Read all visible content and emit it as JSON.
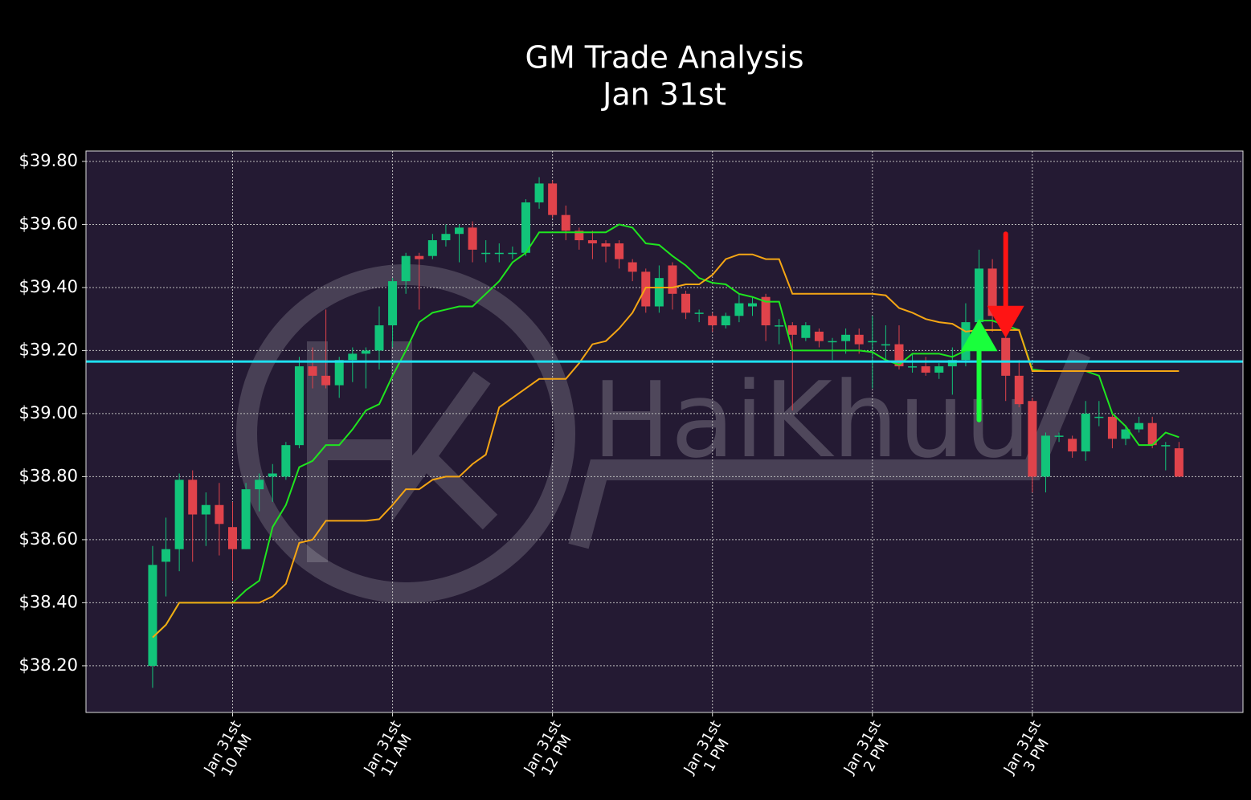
{
  "chart_data": {
    "type": "candlestick",
    "title": "GM Trade Analysis",
    "subtitle": "Jan 31st",
    "watermark": "HaiKhuu",
    "x": [
      570,
      575,
      580,
      585,
      590,
      595,
      600,
      605,
      610,
      615,
      620,
      625,
      630,
      635,
      640,
      645,
      650,
      655,
      660,
      665,
      670,
      675,
      680,
      685,
      690,
      695,
      700,
      705,
      710,
      715,
      720,
      725,
      730,
      735,
      740,
      745,
      750,
      755,
      760,
      765,
      770,
      775,
      780,
      785,
      790,
      795,
      800,
      805,
      810,
      815,
      820,
      825,
      830,
      835,
      840,
      845,
      850,
      855,
      860,
      865,
      870,
      875,
      880,
      885,
      890,
      895,
      900,
      905,
      910,
      915,
      920,
      925,
      930,
      935,
      940,
      945,
      950,
      955
    ],
    "open": [
      38.2,
      38.53,
      38.57,
      38.79,
      38.68,
      38.71,
      38.64,
      38.57,
      38.76,
      38.8,
      38.8,
      38.9,
      39.15,
      39.12,
      39.09,
      39.17,
      39.19,
      39.2,
      39.28,
      39.42,
      39.5,
      39.5,
      39.55,
      39.57,
      39.59,
      39.51,
      39.51,
      39.51,
      39.51,
      39.67,
      39.73,
      39.63,
      39.58,
      39.55,
      39.54,
      39.54,
      39.48,
      39.45,
      39.34,
      39.47,
      39.38,
      39.32,
      39.31,
      39.28,
      39.31,
      39.34,
      39.37,
      39.28,
      39.28,
      39.24,
      39.26,
      39.23,
      39.23,
      39.25,
      39.23,
      39.22,
      39.22,
      39.15,
      39.15,
      39.13,
      39.15,
      39.17,
      39.29,
      39.46,
      39.24,
      39.12,
      39.04,
      38.8,
      38.93,
      38.92,
      38.88,
      38.99,
      38.99,
      38.92,
      38.95,
      38.97,
      38.9,
      38.89
    ],
    "high": [
      38.58,
      38.67,
      38.81,
      38.82,
      38.75,
      38.78,
      38.72,
      38.78,
      38.81,
      38.84,
      38.91,
      39.18,
      39.21,
      39.33,
      39.18,
      39.21,
      39.21,
      39.34,
      39.43,
      39.51,
      39.51,
      39.57,
      39.6,
      39.6,
      39.61,
      39.55,
      39.54,
      39.53,
      39.68,
      39.75,
      39.74,
      39.66,
      39.59,
      39.58,
      39.55,
      39.55,
      39.49,
      39.46,
      39.47,
      39.48,
      39.39,
      39.33,
      39.32,
      39.32,
      39.38,
      39.37,
      39.38,
      39.3,
      39.29,
      39.29,
      39.27,
      39.24,
      39.27,
      39.27,
      39.31,
      39.28,
      39.28,
      39.19,
      39.18,
      39.16,
      39.21,
      39.35,
      39.52,
      39.49,
      39.27,
      39.17,
      39.05,
      38.94,
      38.94,
      38.93,
      39.04,
      39.04,
      39.0,
      38.96,
      38.99,
      38.99,
      38.91,
      38.91
    ],
    "low": [
      38.13,
      38.42,
      38.5,
      38.53,
      38.58,
      38.55,
      38.47,
      38.57,
      38.69,
      38.72,
      38.79,
      38.89,
      39.08,
      39.08,
      39.05,
      39.1,
      39.08,
      39.14,
      39.21,
      39.38,
      39.33,
      39.49,
      39.53,
      39.48,
      39.48,
      39.48,
      39.48,
      39.49,
      39.5,
      39.65,
      39.62,
      39.55,
      39.52,
      39.49,
      39.48,
      39.46,
      39.42,
      39.32,
      39.32,
      39.33,
      39.3,
      39.29,
      39.26,
      39.27,
      39.29,
      39.31,
      39.23,
      39.22,
      39.01,
      39.23,
      39.21,
      39.17,
      39.19,
      39.19,
      39.08,
      39.17,
      39.14,
      39.13,
      39.12,
      39.11,
      39.06,
      39.15,
      39.27,
      39.26,
      39.04,
      39.02,
      38.75,
      38.75,
      38.91,
      38.86,
      38.85,
      38.96,
      38.89,
      38.9,
      38.94,
      38.89,
      38.82,
      38.8
    ],
    "close": [
      38.52,
      38.57,
      38.79,
      38.68,
      38.71,
      38.65,
      38.57,
      38.76,
      38.79,
      38.81,
      38.9,
      39.15,
      39.12,
      39.09,
      39.17,
      39.19,
      39.2,
      39.28,
      39.42,
      39.5,
      39.49,
      39.55,
      39.57,
      39.59,
      39.52,
      39.51,
      39.51,
      39.51,
      39.67,
      39.73,
      39.63,
      39.58,
      39.55,
      39.54,
      39.53,
      39.49,
      39.45,
      39.34,
      39.43,
      39.38,
      39.32,
      39.32,
      39.28,
      39.31,
      39.35,
      39.35,
      39.28,
      39.28,
      39.25,
      39.28,
      39.23,
      39.23,
      39.25,
      39.22,
      39.23,
      39.22,
      39.15,
      39.15,
      39.13,
      39.15,
      39.17,
      39.29,
      39.46,
      39.31,
      39.12,
      39.03,
      38.8,
      38.93,
      38.93,
      38.88,
      39.0,
      38.99,
      38.92,
      38.95,
      38.97,
      38.9,
      38.9,
      38.8
    ],
    "up_color": "#12c47a",
    "down_color": "#e0434b",
    "lines": [
      {
        "color": "#1fe51f",
        "values": [
          38.29,
          38.33,
          38.4,
          38.4,
          38.4,
          38.4,
          38.4,
          38.44,
          38.47,
          38.64,
          38.71,
          38.83,
          38.85,
          38.9,
          38.9,
          38.95,
          39.01,
          39.03,
          39.12,
          39.2,
          39.29,
          39.32,
          39.33,
          39.34,
          39.34,
          39.38,
          39.42,
          39.48,
          39.51,
          39.575,
          39.575,
          39.575,
          39.575,
          39.575,
          39.575,
          39.6,
          39.59,
          39.54,
          39.535,
          39.5,
          39.47,
          39.43,
          39.415,
          39.41,
          39.38,
          39.37,
          39.355,
          39.355,
          39.2,
          39.2,
          39.2,
          39.2,
          39.2,
          39.2,
          39.195,
          39.17,
          39.155,
          39.19,
          39.19,
          39.19,
          39.18,
          39.2,
          39.295,
          39.295,
          39.28,
          39.265,
          39.14,
          39.135,
          39.135,
          39.135,
          39.135,
          39.12,
          39.0,
          38.96,
          38.9,
          38.9,
          38.94,
          38.925
        ]
      },
      {
        "color": "#f5a614",
        "values": [
          38.29,
          38.33,
          38.4,
          38.4,
          38.4,
          38.4,
          38.4,
          38.4,
          38.4,
          38.42,
          38.46,
          38.59,
          38.6,
          38.66,
          38.66,
          38.66,
          38.66,
          38.665,
          38.71,
          38.76,
          38.76,
          38.79,
          38.8,
          38.8,
          38.84,
          38.87,
          39.02,
          39.05,
          39.08,
          39.11,
          39.11,
          39.11,
          39.16,
          39.22,
          39.23,
          39.27,
          39.32,
          39.4,
          39.4,
          39.4,
          39.41,
          39.41,
          39.44,
          39.49,
          39.505,
          39.505,
          39.49,
          39.49,
          39.38,
          39.38,
          39.38,
          39.38,
          39.38,
          39.38,
          39.38,
          39.375,
          39.335,
          39.32,
          39.3,
          39.29,
          39.285,
          39.26,
          39.265,
          39.265,
          39.265,
          39.265,
          39.135,
          39.135,
          39.135,
          39.135,
          39.135,
          39.135,
          39.135,
          39.135,
          39.135,
          39.135,
          39.135,
          39.135
        ]
      }
    ],
    "hline": 39.165,
    "hline_color": "#1ee0f0",
    "arrows": [
      {
        "x": 880,
        "from": 38.98,
        "to": 39.3,
        "color": "#19ff3c"
      },
      {
        "x": 890,
        "from": 39.57,
        "to": 39.24,
        "color": "#ff1414"
      }
    ],
    "xlim": [
      545,
      979
    ],
    "ylim": [
      38.052,
      39.833
    ],
    "xticks": [
      {
        "value": 600,
        "label": "Jan 31st\n10 AM"
      },
      {
        "value": 660,
        "label": "Jan 31st\n11 AM"
      },
      {
        "value": 720,
        "label": "Jan 31st\n12 PM"
      },
      {
        "value": 780,
        "label": "Jan 31st\n1 PM"
      },
      {
        "value": 840,
        "label": "Jan 31st\n2 PM"
      },
      {
        "value": 900,
        "label": "Jan 31st\n3 PM"
      }
    ],
    "yticks": [
      {
        "value": 38.2,
        "label": "$38.20"
      },
      {
        "value": 38.4,
        "label": "$38.40"
      },
      {
        "value": 38.6,
        "label": "$38.60"
      },
      {
        "value": 38.8,
        "label": "$38.80"
      },
      {
        "value": 39.0,
        "label": "$39.00"
      },
      {
        "value": 39.2,
        "label": "$39.20"
      },
      {
        "value": 39.4,
        "label": "$39.40"
      },
      {
        "value": 39.6,
        "label": "$39.60"
      },
      {
        "value": 39.8,
        "label": "$39.80"
      }
    ],
    "grid": true
  }
}
